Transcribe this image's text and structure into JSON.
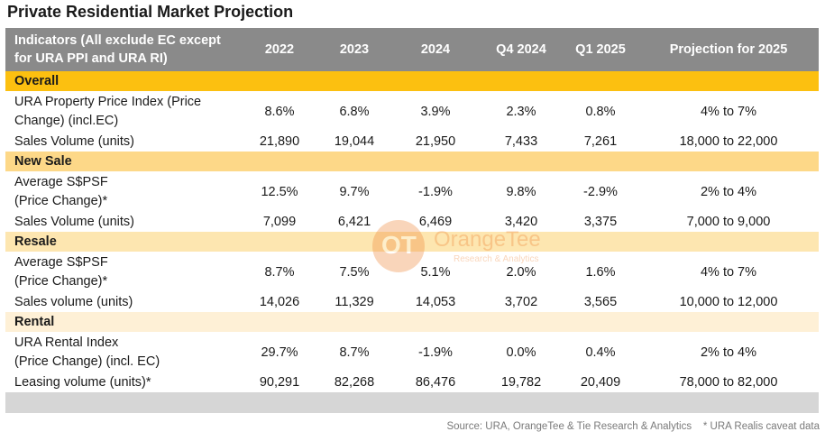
{
  "title": "Private Residential Market Projection",
  "header": {
    "indicator": "Indicators (All exclude EC except for URA PPI and URA RI)",
    "cols": [
      "2022",
      "2023",
      "2024",
      "Q4 2024",
      "Q1 2025",
      "Projection for 2025"
    ]
  },
  "sections": [
    {
      "name": "Overall"
    },
    {
      "name": "New Sale"
    },
    {
      "name": "Resale"
    },
    {
      "name": "Rental"
    }
  ],
  "rows": [
    {
      "label1": "URA Property Price Index (Price",
      "label2": "Change) (incl.EC)",
      "v": [
        "8.6%",
        "6.8%",
        "3.9%",
        "2.3%",
        "0.8%",
        "4% to 7%"
      ]
    },
    {
      "label": "Sales Volume (units)",
      "v": [
        "21,890",
        "19,044",
        "21,950",
        "7,433",
        "7,261",
        "18,000 to 22,000"
      ]
    },
    {
      "label1": "Average S$PSF",
      "label2": "(Price Change)*",
      "v": [
        "12.5%",
        "9.7%",
        "-1.9%",
        "9.8%",
        "-2.9%",
        "2% to 4%"
      ]
    },
    {
      "label": "Sales Volume (units)",
      "v": [
        "7,099",
        "6,421",
        "6,469",
        "3,420",
        "3,375",
        "7,000 to 9,000"
      ]
    },
    {
      "label1": "Average S$PSF",
      "label2": "(Price Change)*",
      "v": [
        "8.7%",
        "7.5%",
        "5.1%",
        "2.0%",
        "1.6%",
        "4% to 7%"
      ]
    },
    {
      "label": "Sales volume (units)",
      "v": [
        "14,026",
        "11,329",
        "14,053",
        "3,702",
        "3,565",
        "10,000 to 12,000"
      ]
    },
    {
      "label1": "URA Rental Index",
      "label2": "(Price Change) (incl. EC)",
      "v": [
        "29.7%",
        "8.7%",
        "-1.9%",
        "0.0%",
        "0.4%",
        "2% to 4%"
      ]
    },
    {
      "label": "Leasing volume (units)*",
      "v": [
        "90,291",
        "82,268",
        "86,476",
        "19,782",
        "20,409",
        "78,000 to 82,000"
      ]
    }
  ],
  "source": "Source: URA, OrangeTee & Tie Research & Analytics    * URA Realis caveat data",
  "watermark": {
    "logo": "OT",
    "name": "OrangeTee",
    "sub": "Research & Analytics"
  },
  "colors": {
    "header": "#8a8a8a",
    "overall": "#fcc010",
    "new_sale": "#fdd888",
    "resale": "#fde6b0",
    "rental": "#fef0d6",
    "footer_bar": "#d6d6d6"
  }
}
